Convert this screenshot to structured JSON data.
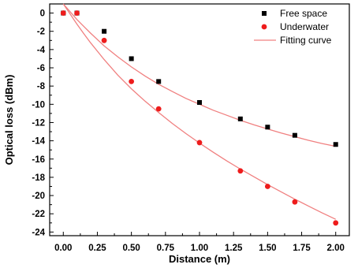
{
  "chart_data": {
    "type": "scatter",
    "title": "",
    "xlabel": "Distance (m)",
    "ylabel": "Optical loss (dBm)",
    "xlim": [
      -0.1,
      2.1
    ],
    "ylim": [
      -24.4,
      1.0
    ],
    "xticks": [
      0.0,
      0.25,
      0.5,
      0.75,
      1.0,
      1.25,
      1.5,
      1.75,
      2.0
    ],
    "xtick_labels": [
      "0.00",
      "0.25",
      "0.50",
      "0.75",
      "1.00",
      "1.25",
      "1.50",
      "1.75",
      "2.00"
    ],
    "yticks": [
      0,
      -2,
      -4,
      -6,
      -8,
      -10,
      -12,
      -14,
      -16,
      -18,
      -20,
      -22,
      -24
    ],
    "ytick_labels": [
      "0",
      "-2",
      "-4",
      "-6",
      "-8",
      "-10",
      "-12",
      "-14",
      "-16",
      "-18",
      "-20",
      "-22",
      "-24"
    ],
    "grid": false,
    "legend_position": "top-right",
    "series": [
      {
        "name": "Free space",
        "marker": "square",
        "color": "#000000",
        "x": [
          0.0,
          0.1,
          0.3,
          0.5,
          0.7,
          1.0,
          1.3,
          1.5,
          1.7,
          2.0
        ],
        "y": [
          0.0,
          0.0,
          -2.0,
          -5.0,
          -7.5,
          -9.8,
          -11.6,
          -12.5,
          -13.4,
          -14.4
        ]
      },
      {
        "name": "Underwater",
        "marker": "circle",
        "color": "#ee1c1c",
        "x": [
          0.0,
          0.1,
          0.3,
          0.5,
          0.7,
          1.0,
          1.3,
          1.5,
          1.7,
          2.0
        ],
        "y": [
          0.0,
          0.0,
          -3.0,
          -7.5,
          -10.5,
          -14.2,
          -17.3,
          -19.0,
          -20.7,
          -23.0
        ]
      },
      {
        "name": "Fitting curve",
        "type": "line",
        "color": "#f08080",
        "curves": [
          {
            "x": [
              0.0,
              0.05,
              0.1,
              0.15,
              0.2,
              0.3,
              0.4,
              0.5,
              0.6,
              0.7,
              0.8,
              0.9,
              1.0,
              1.1,
              1.2,
              1.3,
              1.4,
              1.5,
              1.6,
              1.7,
              1.8,
              1.9,
              2.0
            ],
            "y": [
              1.0,
              0.15,
              -0.7,
              -1.45,
              -2.2,
              -3.6,
              -4.8,
              -5.9,
              -6.9,
              -7.8,
              -8.6,
              -9.35,
              -10.0,
              -10.65,
              -11.2,
              -11.75,
              -12.25,
              -12.7,
              -13.15,
              -13.55,
              -13.95,
              -14.3,
              -14.6
            ]
          },
          {
            "x": [
              0.0,
              0.05,
              0.1,
              0.15,
              0.2,
              0.3,
              0.4,
              0.5,
              0.6,
              0.7,
              0.8,
              0.9,
              1.0,
              1.1,
              1.2,
              1.3,
              1.4,
              1.5,
              1.6,
              1.7,
              1.8,
              1.9,
              2.0
            ],
            "y": [
              1.0,
              -0.1,
              -1.2,
              -2.25,
              -3.25,
              -5.1,
              -6.8,
              -8.3,
              -9.65,
              -10.9,
              -12.1,
              -13.2,
              -14.25,
              -15.25,
              -16.2,
              -17.1,
              -17.95,
              -18.8,
              -19.6,
              -20.4,
              -21.15,
              -21.9,
              -22.6
            ]
          }
        ]
      }
    ]
  }
}
